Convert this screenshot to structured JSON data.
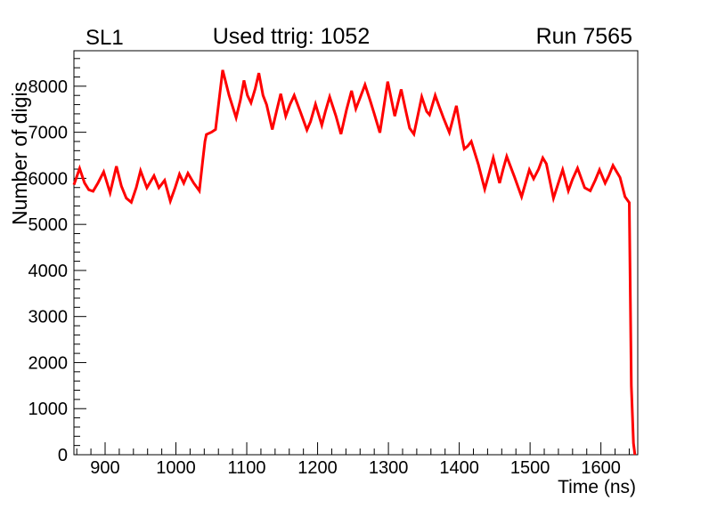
{
  "chart_data": {
    "type": "line",
    "title": "Used ttrig: 1052",
    "corner_label": "SL1",
    "run_label": "Run 7565",
    "xlabel": "Time (ns)",
    "ylabel": "Number of digis",
    "xlim": [
      856,
      1652
    ],
    "ylim": [
      0,
      8770
    ],
    "x_ticks": [
      900,
      1000,
      1100,
      1200,
      1300,
      1400,
      1500,
      1600
    ],
    "y_ticks": [
      0,
      1000,
      2000,
      3000,
      4000,
      5000,
      6000,
      7000,
      8000
    ],
    "x_major_step": 100,
    "x_minor_step": 20,
    "y_major_step": 1000,
    "y_minor_step": 200,
    "grid": false,
    "legend": false,
    "line_color": "#ff0000",
    "frame_color": "#000000",
    "background": "#ffffff",
    "series": [
      {
        "name": "number-of-digis-vs-time",
        "points": [
          [
            856,
            5860
          ],
          [
            864,
            6215
          ],
          [
            871,
            5900
          ],
          [
            877,
            5750
          ],
          [
            883,
            5720
          ],
          [
            890,
            5900
          ],
          [
            898,
            6140
          ],
          [
            907,
            5685
          ],
          [
            916,
            6260
          ],
          [
            923,
            5830
          ],
          [
            930,
            5570
          ],
          [
            937,
            5480
          ],
          [
            944,
            5800
          ],
          [
            950,
            6165
          ],
          [
            959,
            5795
          ],
          [
            969,
            6055
          ],
          [
            976,
            5795
          ],
          [
            984,
            5955
          ],
          [
            992,
            5505
          ],
          [
            999,
            5800
          ],
          [
            1005,
            6090
          ],
          [
            1011,
            5895
          ],
          [
            1017,
            6110
          ],
          [
            1025,
            5900
          ],
          [
            1033,
            5730
          ],
          [
            1038,
            6400
          ],
          [
            1041,
            6800
          ],
          [
            1043,
            6950
          ],
          [
            1050,
            7000
          ],
          [
            1056,
            7060
          ],
          [
            1066,
            8350
          ],
          [
            1075,
            7800
          ],
          [
            1085,
            7315
          ],
          [
            1091,
            7700
          ],
          [
            1096,
            8125
          ],
          [
            1101,
            7800
          ],
          [
            1106,
            7640
          ],
          [
            1112,
            7950
          ],
          [
            1117,
            8285
          ],
          [
            1123,
            7800
          ],
          [
            1128,
            7600
          ],
          [
            1136,
            7060
          ],
          [
            1142,
            7450
          ],
          [
            1148,
            7835
          ],
          [
            1155,
            7350
          ],
          [
            1161,
            7600
          ],
          [
            1167,
            7800
          ],
          [
            1176,
            7430
          ],
          [
            1185,
            7050
          ],
          [
            1190,
            7230
          ],
          [
            1197,
            7610
          ],
          [
            1206,
            7155
          ],
          [
            1211,
            7450
          ],
          [
            1217,
            7770
          ],
          [
            1226,
            7350
          ],
          [
            1233,
            6960
          ],
          [
            1241,
            7500
          ],
          [
            1248,
            7900
          ],
          [
            1254,
            7510
          ],
          [
            1260,
            7750
          ],
          [
            1267,
            8030
          ],
          [
            1274,
            7700
          ],
          [
            1280,
            7400
          ],
          [
            1288,
            6990
          ],
          [
            1299,
            8100
          ],
          [
            1309,
            7350
          ],
          [
            1318,
            7930
          ],
          [
            1324,
            7500
          ],
          [
            1330,
            7090
          ],
          [
            1336,
            6960
          ],
          [
            1342,
            7400
          ],
          [
            1347,
            7770
          ],
          [
            1354,
            7450
          ],
          [
            1358,
            7380
          ],
          [
            1366,
            7800
          ],
          [
            1372,
            7550
          ],
          [
            1378,
            7300
          ],
          [
            1386,
            6995
          ],
          [
            1396,
            7575
          ],
          [
            1404,
            6865
          ],
          [
            1407,
            6640
          ],
          [
            1412,
            6700
          ],
          [
            1417,
            6800
          ],
          [
            1427,
            6300
          ],
          [
            1436,
            5765
          ],
          [
            1442,
            6100
          ],
          [
            1448,
            6445
          ],
          [
            1457,
            5895
          ],
          [
            1462,
            6200
          ],
          [
            1467,
            6475
          ],
          [
            1478,
            6030
          ],
          [
            1488,
            5600
          ],
          [
            1499,
            6185
          ],
          [
            1505,
            5990
          ],
          [
            1512,
            6200
          ],
          [
            1518,
            6445
          ],
          [
            1523,
            6315
          ],
          [
            1533,
            5570
          ],
          [
            1540,
            5900
          ],
          [
            1546,
            6185
          ],
          [
            1554,
            5730
          ],
          [
            1560,
            5980
          ],
          [
            1567,
            6220
          ],
          [
            1577,
            5795
          ],
          [
            1585,
            5730
          ],
          [
            1592,
            5960
          ],
          [
            1598,
            6185
          ],
          [
            1606,
            5895
          ],
          [
            1611,
            6050
          ],
          [
            1617,
            6280
          ],
          [
            1622,
            6150
          ],
          [
            1627,
            6020
          ],
          [
            1634,
            5600
          ],
          [
            1640,
            5470
          ],
          [
            1643,
            1500
          ],
          [
            1646,
            250
          ],
          [
            1648,
            0
          ]
        ]
      }
    ]
  }
}
